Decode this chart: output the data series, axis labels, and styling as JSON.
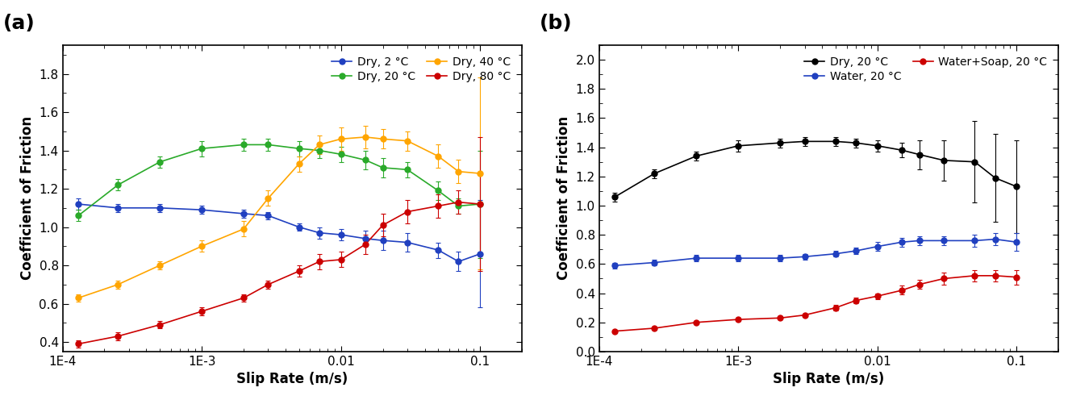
{
  "panel_a": {
    "title_label": "(a)",
    "xlabel": "Slip Rate (m/s)",
    "ylabel": "Coefficient of Friction",
    "ylim": [
      0.35,
      1.95
    ],
    "yticks": [
      0.4,
      0.6,
      0.8,
      1.0,
      1.2,
      1.4,
      1.6,
      1.8
    ],
    "xlim": [
      0.0001,
      0.2
    ],
    "series": [
      {
        "label": "Dry, 2 °C",
        "color": "#2040c0",
        "x": [
          0.00013,
          0.00025,
          0.0005,
          0.001,
          0.002,
          0.003,
          0.005,
          0.007,
          0.01,
          0.015,
          0.02,
          0.03,
          0.05,
          0.07,
          0.1
        ],
        "y": [
          1.12,
          1.1,
          1.1,
          1.09,
          1.07,
          1.06,
          1.0,
          0.97,
          0.96,
          0.94,
          0.93,
          0.92,
          0.88,
          0.82,
          0.86
        ],
        "yerr": [
          0.03,
          0.02,
          0.02,
          0.02,
          0.02,
          0.02,
          0.02,
          0.03,
          0.03,
          0.04,
          0.05,
          0.05,
          0.04,
          0.05,
          0.28
        ]
      },
      {
        "label": "Dry, 20 °C",
        "color": "#2aaa2a",
        "x": [
          0.00013,
          0.00025,
          0.0005,
          0.001,
          0.002,
          0.003,
          0.005,
          0.007,
          0.01,
          0.015,
          0.02,
          0.03,
          0.05,
          0.07,
          0.1
        ],
        "y": [
          1.06,
          1.22,
          1.34,
          1.41,
          1.43,
          1.43,
          1.41,
          1.4,
          1.38,
          1.35,
          1.31,
          1.3,
          1.19,
          1.11,
          1.12
        ],
        "yerr": [
          0.03,
          0.03,
          0.03,
          0.04,
          0.03,
          0.03,
          0.04,
          0.04,
          0.04,
          0.05,
          0.05,
          0.04,
          0.05,
          0.04,
          0.28
        ]
      },
      {
        "label": "Dry, 40 °C",
        "color": "#ffa500",
        "x": [
          0.00013,
          0.00025,
          0.0005,
          0.001,
          0.002,
          0.003,
          0.005,
          0.007,
          0.01,
          0.015,
          0.02,
          0.03,
          0.05,
          0.07,
          0.1
        ],
        "y": [
          0.63,
          0.7,
          0.8,
          0.9,
          0.99,
          1.15,
          1.33,
          1.43,
          1.46,
          1.47,
          1.46,
          1.45,
          1.37,
          1.29,
          1.28
        ],
        "yerr": [
          0.02,
          0.02,
          0.02,
          0.03,
          0.04,
          0.04,
          0.04,
          0.05,
          0.06,
          0.06,
          0.05,
          0.05,
          0.06,
          0.06,
          0.5
        ]
      },
      {
        "label": "Dry, 80 °C",
        "color": "#cc0000",
        "x": [
          0.00013,
          0.00025,
          0.0005,
          0.001,
          0.002,
          0.003,
          0.005,
          0.007,
          0.01,
          0.015,
          0.02,
          0.03,
          0.05,
          0.07,
          0.1
        ],
        "y": [
          0.39,
          0.43,
          0.49,
          0.56,
          0.63,
          0.7,
          0.77,
          0.82,
          0.83,
          0.91,
          1.01,
          1.08,
          1.11,
          1.13,
          1.12
        ],
        "yerr": [
          0.02,
          0.02,
          0.02,
          0.02,
          0.02,
          0.02,
          0.03,
          0.04,
          0.04,
          0.05,
          0.06,
          0.06,
          0.06,
          0.06,
          0.35
        ]
      }
    ]
  },
  "panel_b": {
    "title_label": "(b)",
    "xlabel": "Slip Rate (m/s)",
    "ylabel": "Coefficient of Friction",
    "ylim": [
      0.0,
      2.1
    ],
    "yticks": [
      0.0,
      0.2,
      0.4,
      0.6,
      0.8,
      1.0,
      1.2,
      1.4,
      1.6,
      1.8,
      2.0
    ],
    "xlim": [
      0.0001,
      0.2
    ],
    "series": [
      {
        "label": "Dry, 20 °C",
        "color": "#000000",
        "x": [
          0.00013,
          0.00025,
          0.0005,
          0.001,
          0.002,
          0.003,
          0.005,
          0.007,
          0.01,
          0.015,
          0.02,
          0.03,
          0.05,
          0.07,
          0.1
        ],
        "y": [
          1.06,
          1.22,
          1.34,
          1.41,
          1.43,
          1.44,
          1.44,
          1.43,
          1.41,
          1.38,
          1.35,
          1.31,
          1.3,
          1.19,
          1.13
        ],
        "yerr": [
          0.03,
          0.03,
          0.03,
          0.04,
          0.03,
          0.03,
          0.03,
          0.03,
          0.04,
          0.05,
          0.1,
          0.14,
          0.28,
          0.3,
          0.32
        ]
      },
      {
        "label": "Water, 20 °C",
        "color": "#2040c0",
        "x": [
          0.00013,
          0.00025,
          0.0005,
          0.001,
          0.002,
          0.003,
          0.005,
          0.007,
          0.01,
          0.015,
          0.02,
          0.03,
          0.05,
          0.07,
          0.1
        ],
        "y": [
          0.59,
          0.61,
          0.64,
          0.64,
          0.64,
          0.65,
          0.67,
          0.69,
          0.72,
          0.75,
          0.76,
          0.76,
          0.76,
          0.77,
          0.75
        ],
        "yerr": [
          0.02,
          0.02,
          0.02,
          0.02,
          0.02,
          0.02,
          0.02,
          0.02,
          0.03,
          0.03,
          0.03,
          0.03,
          0.04,
          0.04,
          0.06
        ]
      },
      {
        "label": "Water+Soap, 20 °C",
        "color": "#cc0000",
        "x": [
          0.00013,
          0.00025,
          0.0005,
          0.001,
          0.002,
          0.003,
          0.005,
          0.007,
          0.01,
          0.015,
          0.02,
          0.03,
          0.05,
          0.07,
          0.1
        ],
        "y": [
          0.14,
          0.16,
          0.2,
          0.22,
          0.23,
          0.25,
          0.3,
          0.35,
          0.38,
          0.42,
          0.46,
          0.5,
          0.52,
          0.52,
          0.51
        ],
        "yerr": [
          0.01,
          0.01,
          0.01,
          0.01,
          0.01,
          0.01,
          0.02,
          0.02,
          0.02,
          0.03,
          0.03,
          0.04,
          0.04,
          0.04,
          0.05
        ]
      }
    ]
  },
  "figure_bg": "#ffffff",
  "axes_bg": "#ffffff",
  "marker_size": 5,
  "linewidth": 1.2,
  "capsize": 2,
  "elinewidth": 0.8
}
